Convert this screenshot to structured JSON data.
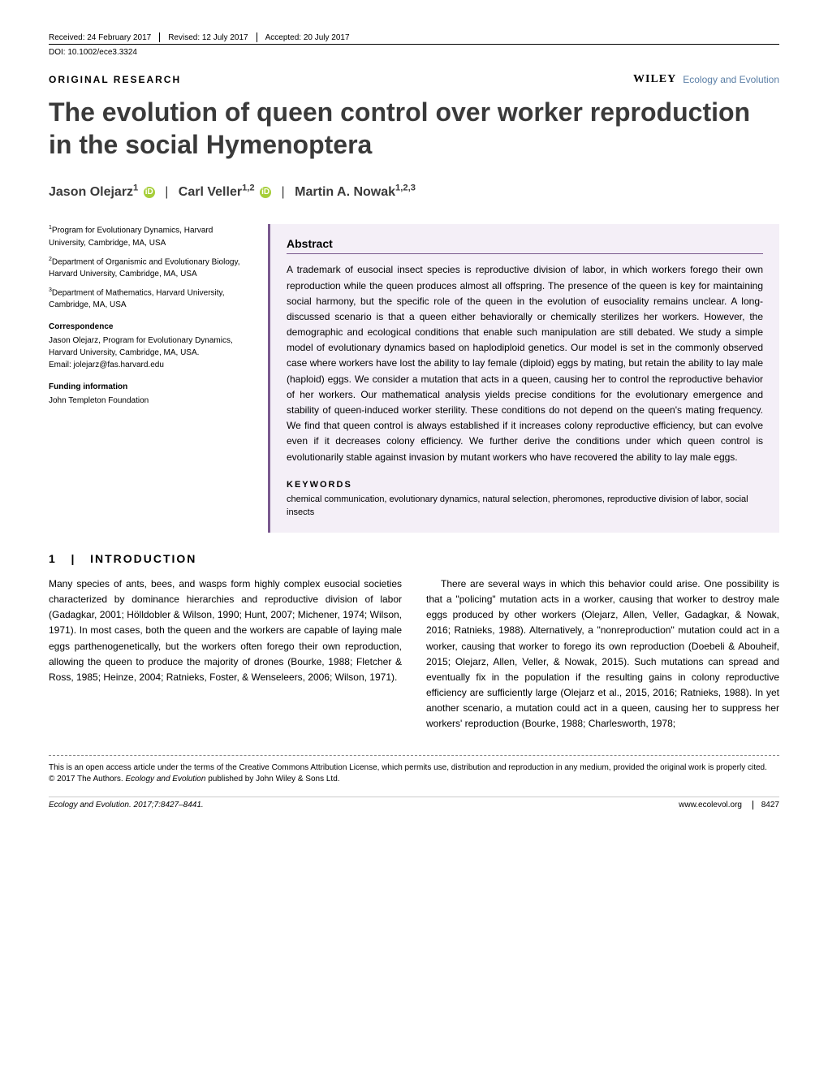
{
  "header": {
    "received": "Received: 24 February 2017",
    "revised": "Revised: 12 July 2017",
    "accepted": "Accepted: 20 July 2017",
    "doi": "DOI: 10.1002/ece3.3324"
  },
  "article_type": "ORIGINAL RESEARCH",
  "journal": {
    "wiley": "WILEY",
    "name": "Ecology and Evolution"
  },
  "title": "The evolution of queen control over worker reproduction in the social Hymenoptera",
  "authors": {
    "a1": {
      "name": "Jason Olejarz",
      "sup": "1"
    },
    "a2": {
      "name": "Carl Veller",
      "sup": "1,2"
    },
    "a3": {
      "name": "Martin A. Nowak",
      "sup": "1,2,3"
    }
  },
  "affiliations": {
    "af1": "Program for Evolutionary Dynamics, Harvard University, Cambridge, MA, USA",
    "af2": "Department of Organismic and Evolutionary Biology, Harvard University, Cambridge, MA, USA",
    "af3": "Department of Mathematics, Harvard University, Cambridge, MA, USA",
    "corr_head": "Correspondence",
    "corr_body": "Jason Olejarz, Program for Evolutionary Dynamics, Harvard University, Cambridge, MA, USA.",
    "corr_email": "Email: jolejarz@fas.harvard.edu",
    "fund_head": "Funding information",
    "fund_body": "John Templeton Foundation"
  },
  "abstract": {
    "head": "Abstract",
    "body": "A trademark of eusocial insect species is reproductive division of labor, in which workers forego their own reproduction while the queen produces almost all offspring. The presence of the queen is key for maintaining social harmony, but the specific role of the queen in the evolution of eusociality remains unclear. A long-discussed scenario is that a queen either behaviorally or chemically sterilizes her workers. However, the demographic and ecological conditions that enable such manipulation are still debated. We study a simple model of evolutionary dynamics based on haplodiploid genetics. Our model is set in the commonly observed case where workers have lost the ability to lay female (diploid) eggs by mating, but retain the ability to lay male (haploid) eggs. We consider a mutation that acts in a queen, causing her to control the reproductive behavior of her workers. Our mathematical analysis yields precise conditions for the evolutionary emergence and stability of queen-induced worker sterility. These conditions do not depend on the queen's mating frequency. We find that queen control is always established if it increases colony reproductive efficiency, but can evolve even if it decreases colony efficiency. We further derive the conditions under which queen control is evolutionarily stable against invasion by mutant workers who have recovered the ability to lay male eggs.",
    "kw_head": "KEYWORDS",
    "kw_body": "chemical communication, evolutionary dynamics, natural selection, pheromones, reproductive division of labor, social insects"
  },
  "section1": {
    "num": "1",
    "sep": "|",
    "title": "INTRODUCTION"
  },
  "body": {
    "left_p1": "Many species of ants, bees, and wasps form highly complex eusocial societies characterized by dominance hierarchies and reproductive division of labor (Gadagkar, 2001; Hölldobler & Wilson, 1990; Hunt, 2007; Michener, 1974; Wilson, 1971). In most cases, both the queen and the workers are capable of laying male eggs parthenogenetically, but the workers often forego their own reproduction, allowing the queen to produce the majority of drones (Bourke, 1988; Fletcher & Ross, 1985; Heinze, 2004; Ratnieks, Foster, & Wenseleers, 2006; Wilson, 1971).",
    "right_p1": "There are several ways in which this behavior could arise. One possibility is that a \"policing\" mutation acts in a worker, causing that worker to destroy male eggs produced by other workers (Olejarz, Allen, Veller, Gadagkar, & Nowak, 2016; Ratnieks, 1988). Alternatively, a \"nonreproduction\" mutation could act in a worker, causing that worker to forego its own reproduction (Doebeli & Abouheif, 2015; Olejarz, Allen, Veller, & Nowak, 2015). Such mutations can spread and eventually fix in the population if the resulting gains in colony reproductive efficiency are sufficiently large (Olejarz et al., 2015, 2016; Ratnieks, 1988). In yet another scenario, a mutation could act in a queen, causing her to suppress her workers' reproduction (Bourke, 1988; Charlesworth, 1978;"
  },
  "license": {
    "l1": "This is an open access article under the terms of the Creative Commons Attribution License, which permits use, distribution and reproduction in any medium, provided the original work is properly cited.",
    "l2": "© 2017 The Authors. Ecology and Evolution published by John Wiley & Sons Ltd."
  },
  "footer": {
    "citation": "Ecology and Evolution. 2017;7:8427–8441.",
    "url": "www.ecolevol.org",
    "page": "8427"
  },
  "colors": {
    "abstract_bg": "#f4eff7",
    "abstract_border": "#7a5a8f",
    "journal_color": "#5b7fa6",
    "orcid": "#a6ce39"
  }
}
